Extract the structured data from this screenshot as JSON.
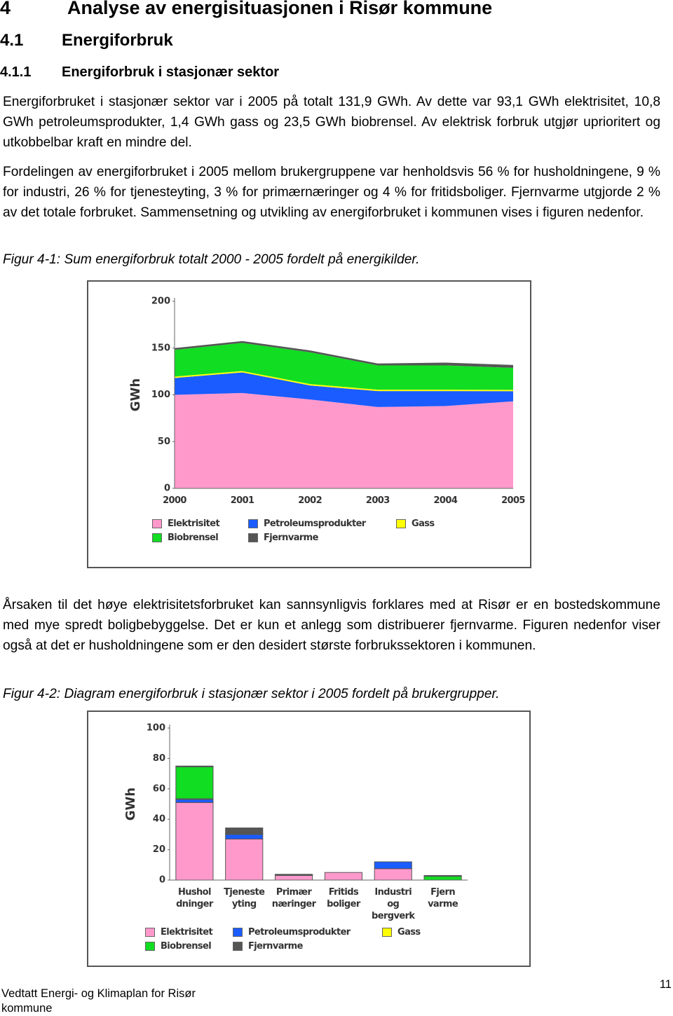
{
  "heading": {
    "number": "4",
    "title": "Analyse av energisituasjonen i Risør kommune"
  },
  "section": {
    "number": "4.1",
    "title": "Energiforbruk"
  },
  "subsection": {
    "number": "4.1.1",
    "title": "Energiforbruk i stasjonær sektor"
  },
  "paragraphs": [
    "Energiforbruket i stasjonær sektor var i 2005 på totalt 131,9 GWh. Av dette var 93,1 GWh elektrisitet, 10,8 GWh petroleumsprodukter, 1,4 GWh gass og 23,5 GWh biobrensel. Av elektrisk forbruk utgjør uprioritert og utkobbelbar kraft en mindre del.",
    "Fordelingen av energiforbruket i 2005 mellom brukergruppene var henholdsvis 56 % for husholdningene, 9 % for industri, 26 % for tjenesteyting, 3 % for primærnæringer og 4 % for fritidsboliger. Fjernvarme utgjorde 2 % av det totale forbruket. Sammensetning og utvikling av energiforbruket i kommunen vises i figuren nedenfor.",
    "Årsaken til det høye elektrisitetsforbruket kan sannsynligvis forklares med at Risør er en bostedskommune med mye spredt boligbebyggelse. Det er kun et anlegg som distribuerer fjernvarme. Figuren nedenfor viser også at det er husholdningene som er den desidert største forbrukssektoren i kommunen."
  ],
  "captions": [
    "Figur 4-1: Sum energiforbruk totalt 2000 - 2005 fordelt på energikilder.",
    "Figur 4-2: Diagram energiforbruk i stasjonær sektor i 2005 fordelt på brukergrupper."
  ],
  "footer": {
    "text": "Vedtatt Energi- og Klimaplan for Risør kommune",
    "page": "11"
  },
  "chart_data": [
    {
      "type": "area",
      "stacked": true,
      "y_label": "GWh",
      "categories": [
        "2000",
        "2001",
        "2002",
        "2003",
        "2004",
        "2005"
      ],
      "series": [
        {
          "name": "Elektrisitet",
          "color": "#ff99cc",
          "values": [
            100,
            102,
            95,
            87,
            88,
            93.1
          ]
        },
        {
          "name": "Petroleumsprodukter",
          "color": "#1a5cff",
          "values": [
            18,
            22,
            15,
            17,
            16,
            10.8
          ]
        },
        {
          "name": "Gass",
          "color": "#ffff00",
          "values": [
            1.5,
            1.5,
            1.5,
            1.5,
            1.5,
            1.4
          ]
        },
        {
          "name": "Biobrensel",
          "color": "#11dd22",
          "values": [
            28.5,
            30,
            34,
            26,
            26,
            23.5
          ]
        },
        {
          "name": "Fjernvarme",
          "color": "#555555",
          "values": [
            2,
            2,
            2,
            2,
            3,
            3.1
          ]
        }
      ],
      "ylim": [
        0,
        200
      ],
      "yticks": [
        0,
        50,
        100,
        150,
        200
      ],
      "grid": false
    },
    {
      "type": "bar",
      "stacked": true,
      "y_label": "GWh",
      "categories": [
        "Hushol\ndninger",
        "Tjeneste\nyting",
        "Primær\nnæringer",
        "Fritids\nboliger",
        "Industri\nog\nbergverk",
        "Fjern\nvarme"
      ],
      "series": [
        {
          "name": "Elektrisitet",
          "color": "#ff99cc",
          "values": [
            51,
            27,
            3,
            5,
            7.5,
            0
          ]
        },
        {
          "name": "Petroleumsprodukter",
          "color": "#1a5cff",
          "values": [
            2,
            3,
            0.3,
            0,
            4.5,
            0
          ]
        },
        {
          "name": "Gass",
          "color": "#ffff00",
          "values": [
            0.5,
            0.5,
            0,
            0,
            0,
            0
          ]
        },
        {
          "name": "Biobrensel",
          "color": "#11dd22",
          "values": [
            21,
            0.3,
            0,
            0,
            0,
            2.5
          ]
        },
        {
          "name": "Fjernvarme",
          "color": "#555555",
          "values": [
            0.5,
            3.5,
            0.5,
            0,
            0,
            0.5
          ]
        }
      ],
      "ylim": [
        0,
        100
      ],
      "yticks": [
        0,
        20,
        40,
        60,
        80,
        100
      ],
      "grid": false
    }
  ]
}
